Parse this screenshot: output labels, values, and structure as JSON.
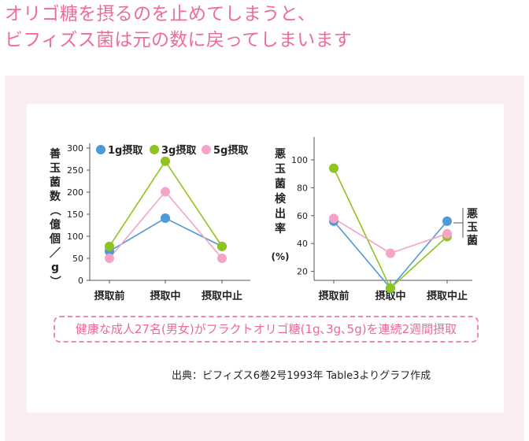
{
  "headline": {
    "line1": "オリゴ糖を摂るのを止めてしまうと、",
    "line2": "ビフィズス菌は元の数に戻ってしまいます"
  },
  "chart_data": [
    {
      "type": "line",
      "categories": [
        "摂取前",
        "摂取中",
        "摂取中止"
      ],
      "ylabel": "善玉菌数（億個／g）",
      "ylim": [
        0,
        300
      ],
      "yticks": [
        0,
        50,
        100,
        150,
        200,
        250,
        300
      ],
      "legend_position": "top",
      "series": [
        {
          "name": "1g摂取",
          "color": "#4d9ad8",
          "values": [
            66,
            141,
            77
          ]
        },
        {
          "name": "3g摂取",
          "color": "#8fc31f",
          "values": [
            77,
            270,
            77
          ]
        },
        {
          "name": "5g摂取",
          "color": "#f5a3c7",
          "values": [
            50,
            201,
            50
          ]
        }
      ]
    },
    {
      "type": "line",
      "categories": [
        "摂取前",
        "摂取中",
        "摂取中止"
      ],
      "ylabel": "悪玉菌検出率",
      "yunit": "(%)",
      "ylim": [
        0,
        110
      ],
      "yticks": [
        20,
        40,
        60,
        80,
        100
      ],
      "annotation": "悪玉菌",
      "series": [
        {
          "name": "1g摂取",
          "color": "#4d9ad8",
          "values": [
            56,
            8,
            56
          ]
        },
        {
          "name": "3g摂取",
          "color": "#8fc31f",
          "values": [
            94,
            8,
            45
          ]
        },
        {
          "name": "5g摂取",
          "color": "#f5a3c7",
          "values": [
            58,
            33,
            47
          ]
        }
      ]
    }
  ],
  "note": "健康な成人27名(男女)がフラクトオリゴ糖(1g､3g､5g)を連続2週間摂取",
  "source": "出典：ビフィズス6巻2号1993年 Table3よりグラフ作成"
}
